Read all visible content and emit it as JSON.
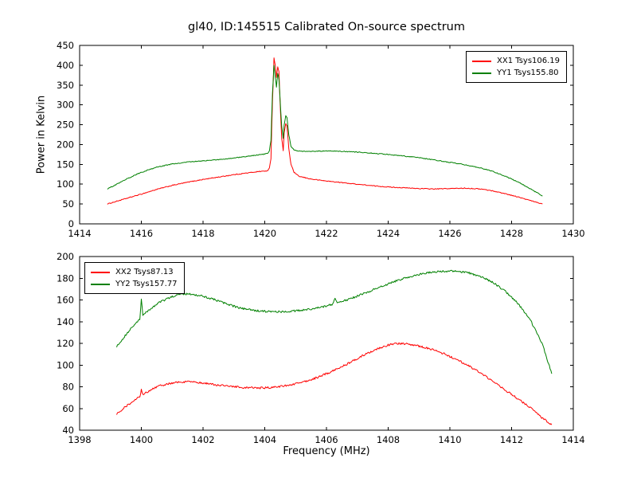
{
  "chart_data": [
    {
      "type": "line",
      "title": "gl40, ID:145515 Calibrated On-source spectrum",
      "ylabel": "Power in Kelvin",
      "xlim": [
        1414,
        1430
      ],
      "ylim": [
        0,
        450
      ],
      "xticks": [
        1414,
        1416,
        1418,
        1420,
        1422,
        1424,
        1426,
        1428,
        1430
      ],
      "yticks": [
        0,
        50,
        100,
        150,
        200,
        250,
        300,
        350,
        400,
        450
      ],
      "grid": false,
      "legend_position": "upper right",
      "noise": 1.0,
      "series": [
        {
          "name": "XX1 Tsys106.19",
          "color": "#ff0000",
          "points": [
            [
              1414.9,
              50
            ],
            [
              1415.2,
              57
            ],
            [
              1415.6,
              66
            ],
            [
              1416.0,
              75
            ],
            [
              1416.5,
              87
            ],
            [
              1417.0,
              97
            ],
            [
              1417.5,
              105
            ],
            [
              1418.0,
              112
            ],
            [
              1418.5,
              118
            ],
            [
              1419.0,
              124
            ],
            [
              1419.5,
              129
            ],
            [
              1419.8,
              132
            ],
            [
              1420.0,
              133
            ],
            [
              1420.1,
              134
            ],
            [
              1420.15,
              140
            ],
            [
              1420.2,
              165
            ],
            [
              1420.25,
              310
            ],
            [
              1420.3,
              418
            ],
            [
              1420.34,
              400
            ],
            [
              1420.38,
              370
            ],
            [
              1420.42,
              395
            ],
            [
              1420.46,
              385
            ],
            [
              1420.5,
              300
            ],
            [
              1420.55,
              215
            ],
            [
              1420.6,
              185
            ],
            [
              1420.63,
              230
            ],
            [
              1420.68,
              252
            ],
            [
              1420.72,
              248
            ],
            [
              1420.78,
              190
            ],
            [
              1420.85,
              150
            ],
            [
              1420.95,
              130
            ],
            [
              1421.1,
              120
            ],
            [
              1421.5,
              113
            ],
            [
              1422.0,
              108
            ],
            [
              1422.5,
              104
            ],
            [
              1423.0,
              100
            ],
            [
              1423.5,
              96
            ],
            [
              1424.0,
              93
            ],
            [
              1424.5,
              91
            ],
            [
              1425.0,
              89
            ],
            [
              1425.5,
              88
            ],
            [
              1426.0,
              89
            ],
            [
              1426.5,
              90
            ],
            [
              1427.0,
              88
            ],
            [
              1427.4,
              83
            ],
            [
              1427.8,
              76
            ],
            [
              1428.2,
              68
            ],
            [
              1428.6,
              59
            ],
            [
              1429.0,
              50
            ]
          ]
        },
        {
          "name": "YY1 Tsys155.80",
          "color": "#008000",
          "points": [
            [
              1414.9,
              88
            ],
            [
              1415.2,
              100
            ],
            [
              1415.6,
              116
            ],
            [
              1416.0,
              130
            ],
            [
              1416.5,
              143
            ],
            [
              1417.0,
              151
            ],
            [
              1417.5,
              156
            ],
            [
              1418.0,
              159
            ],
            [
              1418.5,
              162
            ],
            [
              1419.0,
              166
            ],
            [
              1419.5,
              171
            ],
            [
              1419.8,
              174
            ],
            [
              1420.0,
              176
            ],
            [
              1420.1,
              178
            ],
            [
              1420.15,
              185
            ],
            [
              1420.2,
              210
            ],
            [
              1420.25,
              330
            ],
            [
              1420.3,
              400
            ],
            [
              1420.34,
              370
            ],
            [
              1420.38,
              345
            ],
            [
              1420.42,
              380
            ],
            [
              1420.46,
              365
            ],
            [
              1420.5,
              310
            ],
            [
              1420.55,
              245
            ],
            [
              1420.6,
              215
            ],
            [
              1420.63,
              250
            ],
            [
              1420.68,
              272
            ],
            [
              1420.72,
              268
            ],
            [
              1420.78,
              225
            ],
            [
              1420.85,
              196
            ],
            [
              1420.95,
              186
            ],
            [
              1421.1,
              183
            ],
            [
              1421.5,
              183
            ],
            [
              1422.0,
              184
            ],
            [
              1422.5,
              183
            ],
            [
              1423.0,
              181
            ],
            [
              1423.5,
              178
            ],
            [
              1424.0,
              175
            ],
            [
              1424.5,
              171
            ],
            [
              1425.0,
              167
            ],
            [
              1425.5,
              161
            ],
            [
              1426.0,
              155
            ],
            [
              1426.5,
              149
            ],
            [
              1427.0,
              141
            ],
            [
              1427.4,
              132
            ],
            [
              1427.8,
              120
            ],
            [
              1428.2,
              106
            ],
            [
              1428.6,
              89
            ],
            [
              1429.0,
              70
            ]
          ]
        }
      ]
    },
    {
      "type": "line",
      "xlabel": "Frequency (MHz)",
      "xlim": [
        1398,
        1414
      ],
      "ylim": [
        40,
        200
      ],
      "xticks": [
        1398,
        1400,
        1402,
        1404,
        1406,
        1408,
        1410,
        1412,
        1414
      ],
      "yticks": [
        40,
        60,
        80,
        100,
        120,
        140,
        160,
        180,
        200
      ],
      "grid": false,
      "legend_position": "upper left",
      "noise": 0.9,
      "series": [
        {
          "name": "XX2 Tsys87.13",
          "color": "#ff0000",
          "points": [
            [
              1399.2,
              55
            ],
            [
              1399.5,
              62
            ],
            [
              1399.8,
              68
            ],
            [
              1399.95,
              71
            ],
            [
              1400.0,
              77
            ],
            [
              1400.05,
              73
            ],
            [
              1400.3,
              77
            ],
            [
              1400.6,
              81
            ],
            [
              1401.0,
              83.5
            ],
            [
              1401.3,
              84.5
            ],
            [
              1401.6,
              84.5
            ],
            [
              1402.0,
              83.5
            ],
            [
              1402.4,
              82
            ],
            [
              1402.8,
              80.5
            ],
            [
              1403.2,
              79.5
            ],
            [
              1403.6,
              79
            ],
            [
              1404.0,
              79
            ],
            [
              1404.4,
              80
            ],
            [
              1404.8,
              81.5
            ],
            [
              1405.2,
              84
            ],
            [
              1405.6,
              87.5
            ],
            [
              1406.0,
              92
            ],
            [
              1406.4,
              97
            ],
            [
              1406.8,
              103
            ],
            [
              1407.2,
              109
            ],
            [
              1407.6,
              114.5
            ],
            [
              1408.0,
              118.5
            ],
            [
              1408.3,
              120
            ],
            [
              1408.6,
              119.5
            ],
            [
              1409.0,
              117.5
            ],
            [
              1409.4,
              114.5
            ],
            [
              1409.8,
              110.5
            ],
            [
              1410.2,
              105.5
            ],
            [
              1410.6,
              99.5
            ],
            [
              1411.0,
              92.5
            ],
            [
              1411.4,
              85
            ],
            [
              1411.8,
              77
            ],
            [
              1412.2,
              69
            ],
            [
              1412.6,
              61
            ],
            [
              1413.0,
              51
            ],
            [
              1413.3,
              45
            ]
          ]
        },
        {
          "name": "YY2 Tsys157.77",
          "color": "#008000",
          "points": [
            [
              1399.2,
              117
            ],
            [
              1399.5,
              128
            ],
            [
              1399.8,
              138
            ],
            [
              1399.95,
              142
            ],
            [
              1400.0,
              160
            ],
            [
              1400.05,
              146
            ],
            [
              1400.3,
              152
            ],
            [
              1400.6,
              158
            ],
            [
              1401.0,
              163
            ],
            [
              1401.3,
              165.5
            ],
            [
              1401.6,
              165.5
            ],
            [
              1402.0,
              163.5
            ],
            [
              1402.4,
              160
            ],
            [
              1402.8,
              156
            ],
            [
              1403.2,
              152.5
            ],
            [
              1403.6,
              150.5
            ],
            [
              1404.0,
              149.5
            ],
            [
              1404.4,
              149
            ],
            [
              1404.8,
              149.5
            ],
            [
              1405.2,
              150.5
            ],
            [
              1405.6,
              152
            ],
            [
              1406.0,
              154.5
            ],
            [
              1406.2,
              156
            ],
            [
              1406.28,
              161
            ],
            [
              1406.35,
              157.5
            ],
            [
              1406.6,
              159.5
            ],
            [
              1407.0,
              163.5
            ],
            [
              1407.4,
              168
            ],
            [
              1407.8,
              172.5
            ],
            [
              1408.2,
              177
            ],
            [
              1408.6,
              180.5
            ],
            [
              1409.0,
              183.5
            ],
            [
              1409.4,
              185.5
            ],
            [
              1409.8,
              186.5
            ],
            [
              1410.2,
              186.5
            ],
            [
              1410.6,
              185
            ],
            [
              1411.0,
              181.5
            ],
            [
              1411.4,
              176
            ],
            [
              1411.8,
              168
            ],
            [
              1412.2,
              157
            ],
            [
              1412.6,
              142
            ],
            [
              1413.0,
              119
            ],
            [
              1413.3,
              92
            ]
          ]
        }
      ]
    }
  ]
}
